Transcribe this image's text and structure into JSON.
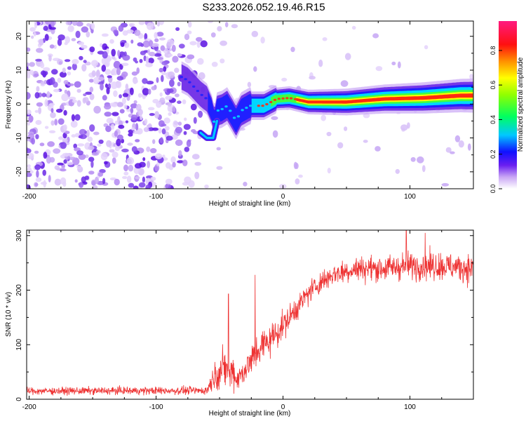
{
  "title": "S233.2026.052.19.46.R15",
  "chart_data": [
    {
      "type": "heatmap",
      "xlabel": "Height of straight line (km)",
      "ylabel": "Frequency (Hz)",
      "xlim": [
        -202,
        150
      ],
      "ylim": [
        -25,
        24.5
      ],
      "xticks": [
        -200,
        -100,
        0,
        100
      ],
      "yticks": [
        -20,
        -10,
        0,
        10,
        20
      ],
      "colorbar": {
        "label": "Normalized spectral amplitude",
        "range": [
          0,
          0.97
        ],
        "ticks": [
          0.0,
          0.2,
          0.4,
          0.6,
          0.8
        ]
      },
      "ridge": [
        {
          "x": -80,
          "f": 8
        },
        {
          "x": -75,
          "f": 7
        },
        {
          "x": -70,
          "f": 5
        },
        {
          "x": -65,
          "f": 3
        },
        {
          "x": -60,
          "f": 1.5
        },
        {
          "x": -56,
          "f": -2
        },
        {
          "x": -54,
          "f": -6
        },
        {
          "x": -52,
          "f": -2
        },
        {
          "x": -48,
          "f": -1.5
        },
        {
          "x": -44,
          "f": -0.5
        },
        {
          "x": -40,
          "f": -3
        },
        {
          "x": -37,
          "f": -5
        },
        {
          "x": -33,
          "f": -2
        },
        {
          "x": -26,
          "f": -0.5
        },
        {
          "x": -15,
          "f": -0.5
        },
        {
          "x": -5,
          "f": 1.5
        },
        {
          "x": 5,
          "f": 1.8
        },
        {
          "x": 20,
          "f": 0.6
        },
        {
          "x": 50,
          "f": 0.6
        },
        {
          "x": 80,
          "f": 1.5
        },
        {
          "x": 110,
          "f": 1.8
        },
        {
          "x": 140,
          "f": 2.5
        },
        {
          "x": 150,
          "f": 2.5
        }
      ],
      "lower_branch": [
        {
          "x": -65,
          "f": -8.5
        },
        {
          "x": -60,
          "f": -10
        },
        {
          "x": -55,
          "f": -10
        },
        {
          "x": -52,
          "f": -5
        }
      ]
    },
    {
      "type": "line",
      "xlabel": "Height of straight line (km)",
      "ylabel": "SNR (10 * v/v)",
      "xlim": [
        -202,
        150
      ],
      "ylim": [
        0,
        310
      ],
      "xticks": [
        -200,
        -100,
        0,
        100
      ],
      "yticks": [
        0,
        100,
        200,
        300
      ],
      "series": [
        {
          "name": "SNR",
          "color": "#ee3333",
          "envelope_x": [
            -202,
            -60,
            -55,
            -50,
            -45,
            -42,
            -40,
            -37,
            -35,
            -30,
            -25,
            -20,
            -10,
            0,
            10,
            20,
            30,
            40,
            50,
            60,
            80,
            100,
            120,
            150
          ],
          "envelope_mean": [
            15,
            16,
            40,
            50,
            60,
            40,
            60,
            35,
            40,
            55,
            70,
            90,
            110,
            135,
            165,
            195,
            215,
            230,
            235,
            240,
            240,
            245,
            245,
            240
          ],
          "envelope_noise": [
            9,
            10,
            30,
            40,
            55,
            30,
            50,
            25,
            30,
            35,
            40,
            45,
            40,
            35,
            30,
            28,
            28,
            28,
            30,
            30,
            32,
            35,
            35,
            35
          ],
          "peaks": [
            {
              "x": -43,
              "y": 193
            },
            {
              "x": -22,
              "y": 228
            },
            {
              "x": 97,
              "y": 310
            },
            {
              "x": 112,
              "y": 305
            }
          ]
        }
      ]
    }
  ]
}
